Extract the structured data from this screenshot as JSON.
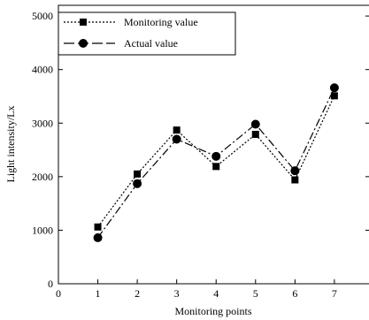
{
  "chart_data": {
    "type": "line",
    "title": "",
    "xlabel": "Monitoring points",
    "ylabel": "Light intensity/Lx",
    "xlim": [
      0,
      7.9
    ],
    "ylim": [
      0,
      5200
    ],
    "x_ticks": [
      0,
      1,
      2,
      3,
      4,
      5,
      6,
      7
    ],
    "y_ticks": [
      0,
      1000,
      2000,
      3000,
      4000,
      5000
    ],
    "grid": false,
    "legend_position": "top-left",
    "series": [
      {
        "name": "Monitoring value",
        "marker": "square",
        "line_style": "dotted",
        "x": [
          1,
          2,
          3,
          4,
          5,
          6,
          7
        ],
        "y": [
          1060,
          2050,
          2870,
          2190,
          2790,
          1940,
          3510
        ]
      },
      {
        "name": "Actual value",
        "marker": "circle",
        "line_style": "dash-dot",
        "x": [
          1,
          2,
          3,
          4,
          5,
          6,
          7
        ],
        "y": [
          860,
          1870,
          2700,
          2380,
          2980,
          2110,
          3660
        ]
      }
    ]
  }
}
